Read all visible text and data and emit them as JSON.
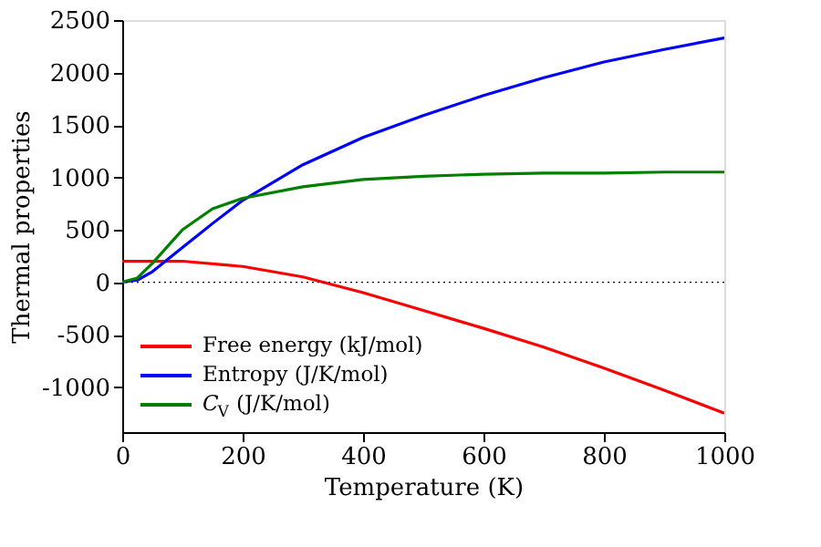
{
  "chart_data": {
    "type": "line",
    "xlabel": "Temperature (K)",
    "ylabel": "Thermal properties",
    "xlim": [
      0,
      1000
    ],
    "xticks": [
      0,
      200,
      400,
      600,
      800,
      {
        "value": 1000,
        "label": "1000"
      }
    ],
    "ylim": [
      -1430,
      2500
    ],
    "yticks": [
      -1000,
      -500,
      0,
      500,
      1000,
      1500,
      2000,
      2500
    ],
    "grid": false,
    "legend": "bottom left",
    "marker": "none",
    "line_style": "solid",
    "ref_lines": [
      {
        "axis": "y",
        "value": 0,
        "color": "#000000",
        "line_style": "dotted"
      }
    ],
    "series": [
      {
        "name": "Free energy (kJ/mol)",
        "color": "#ff0000",
        "x": [
          0,
          100,
          200,
          300,
          400,
          500,
          600,
          700,
          800,
          900,
          1000
        ],
        "values": [
          200,
          200,
          150,
          50,
          -100,
          -270,
          -440,
          -620,
          -820,
          -1030,
          -1250
        ]
      },
      {
        "name": "Entropy (J/K/mol)",
        "color": "#0000ff",
        "x": [
          0,
          25,
          50,
          100,
          150,
          200,
          300,
          400,
          500,
          600,
          700,
          800,
          900,
          1000
        ],
        "values": [
          0,
          20,
          100,
          330,
          560,
          780,
          1120,
          1380,
          1590,
          1780,
          1950,
          2100,
          2220,
          2330
        ]
      },
      {
        "name": "C$_{V}$ (J/K/mol)",
        "color": "#008000",
        "x": [
          0,
          25,
          50,
          100,
          150,
          200,
          300,
          400,
          500,
          600,
          700,
          800,
          900,
          1000
        ],
        "values": [
          0,
          40,
          180,
          500,
          700,
          800,
          910,
          980,
          1010,
          1030,
          1040,
          1040,
          1050,
          1050
        ]
      }
    ]
  }
}
